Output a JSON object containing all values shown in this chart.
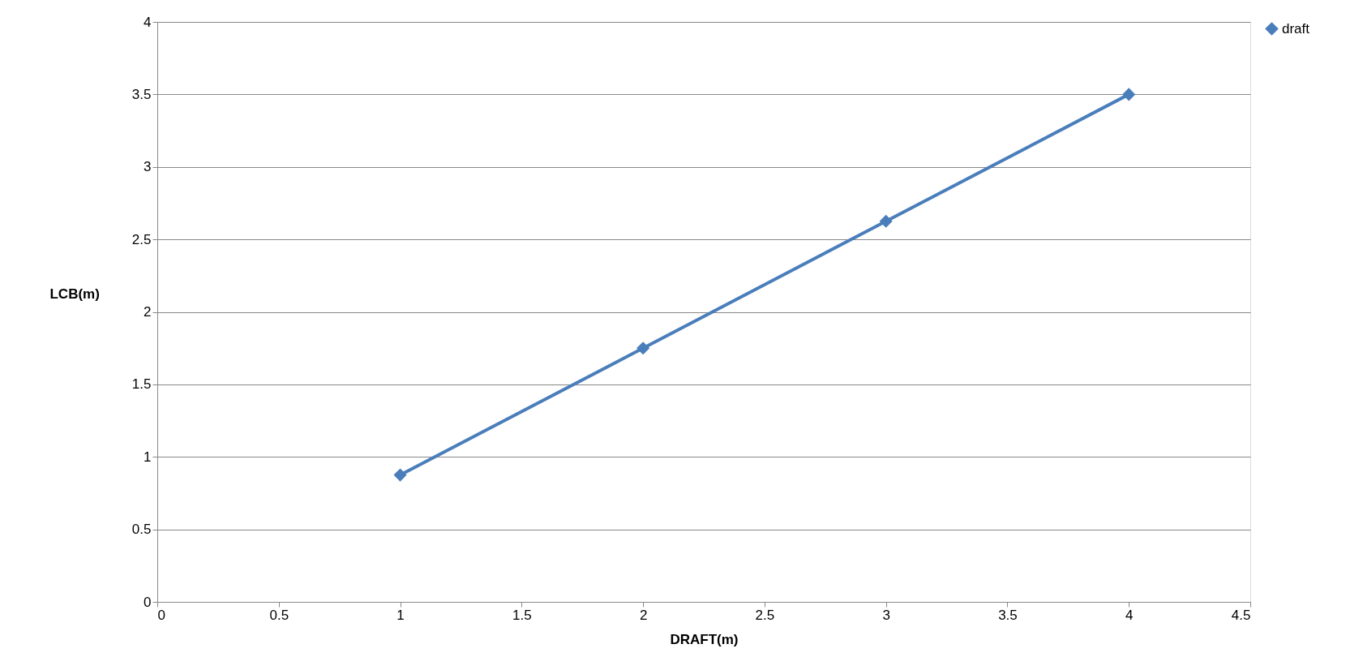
{
  "chart_data": {
    "type": "line",
    "xlabel": "DRAFT(m)",
    "ylabel": "LCB(m)",
    "x": [
      1,
      2,
      3,
      4
    ],
    "series": [
      {
        "name": "draft",
        "color": "#4a7ebb",
        "values": [
          0.875,
          1.75,
          2.625,
          3.5
        ]
      }
    ],
    "xlim": [
      0,
      4.5
    ],
    "xticks": [
      0,
      0.5,
      1,
      1.5,
      2,
      2.5,
      3,
      3.5,
      4,
      4.5
    ],
    "ylim": [
      0,
      4
    ],
    "yticks": [
      0,
      0.5,
      1,
      1.5,
      2,
      2.5,
      3,
      3.5,
      4
    ],
    "grid": "y",
    "legend": "right",
    "marker": "diamond",
    "line_style": "solid"
  }
}
